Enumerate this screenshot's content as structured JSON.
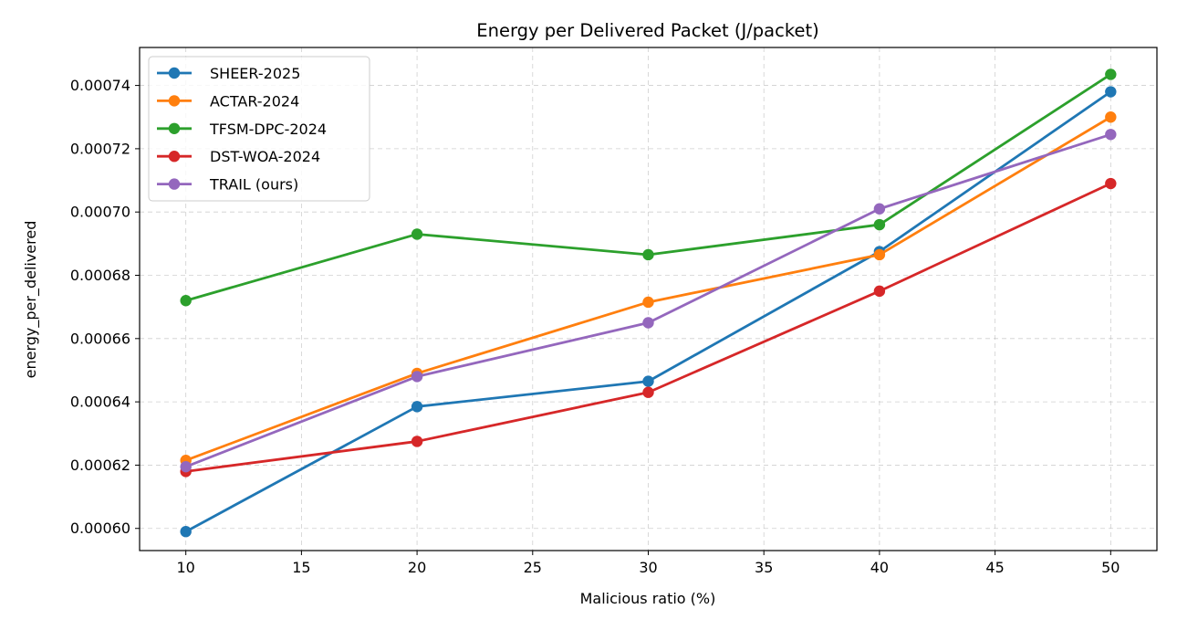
{
  "chart_data": {
    "type": "line",
    "title": "Energy per Delivered Packet (J/packet)",
    "xlabel": "Malicious ratio (%)",
    "ylabel": "energy_per_delivered",
    "x": [
      10,
      20,
      30,
      40,
      50
    ],
    "xlim": [
      8,
      52
    ],
    "ylim": [
      0.000593,
      0.000752
    ],
    "xticks": [
      10,
      15,
      20,
      25,
      30,
      35,
      40,
      45,
      50
    ],
    "yticks": [
      0.0006,
      0.00062,
      0.00064,
      0.00066,
      0.00068,
      0.0007,
      0.00072,
      0.00074
    ],
    "ytick_labels": [
      "0.00060",
      "0.00062",
      "0.00064",
      "0.00066",
      "0.00068",
      "0.00070",
      "0.00072",
      "0.00074"
    ],
    "grid": true,
    "legend_position": "top-left",
    "series": [
      {
        "name": "SHEER-2025",
        "color": "#1f77b4",
        "values": [
          0.000599,
          0.0006385,
          0.0006465,
          0.0006875,
          0.000738
        ]
      },
      {
        "name": "ACTAR-2024",
        "color": "#ff7f0e",
        "values": [
          0.0006215,
          0.000649,
          0.0006715,
          0.0006865,
          0.00073
        ]
      },
      {
        "name": "TFSM-DPC-2024",
        "color": "#2ca02c",
        "values": [
          0.000672,
          0.000693,
          0.0006865,
          0.000696,
          0.0007435
        ]
      },
      {
        "name": "DST-WOA-2024",
        "color": "#d62728",
        "values": [
          0.000618,
          0.0006275,
          0.000643,
          0.000675,
          0.000709
        ]
      },
      {
        "name": "TRAIL (ours)",
        "color": "#9467bd",
        "values": [
          0.0006195,
          0.000648,
          0.000665,
          0.000701,
          0.0007245
        ]
      }
    ]
  }
}
